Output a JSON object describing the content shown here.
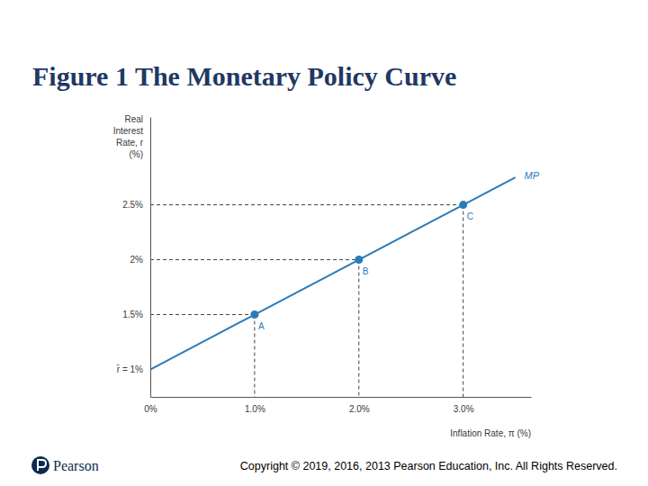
{
  "chart_data": {
    "type": "line",
    "title": "Figure 1 The Monetary Policy Curve",
    "x_label": "Inflation Rate, π (%)",
    "y_label": "Real Interest Rate, r (%)",
    "x": [
      0,
      1,
      2,
      3,
      3.5
    ],
    "series": [
      {
        "name": "MP",
        "color": "#2b7bb9",
        "marker": "none",
        "line_style": "solid",
        "values": [
          1,
          1.5,
          2,
          2.5,
          2.75
        ]
      }
    ],
    "annotations": [
      {
        "x": 1,
        "y": 1.5,
        "label": "A"
      },
      {
        "x": 2,
        "y": 2,
        "label": "B"
      },
      {
        "x": 3,
        "y": 2.5,
        "label": "C"
      }
    ],
    "xlim": [
      0,
      3.65
    ],
    "ylim": [
      0.75,
      3.3
    ],
    "xticks": [
      {
        "value": 0,
        "label": "0%"
      },
      {
        "value": 1,
        "label": "1.0%"
      },
      {
        "value": 2,
        "label": "2.0%"
      },
      {
        "value": 3,
        "label": "3.0%"
      }
    ],
    "yticks": [
      {
        "value": 1,
        "label": "r̄ = 1%"
      },
      {
        "value": 1.5,
        "label": "1.5%"
      },
      {
        "value": 2,
        "label": "2%"
      },
      {
        "value": 2.5,
        "label": "2.5%"
      }
    ]
  },
  "footer": {
    "logo": "Pearson",
    "copyright": "Copyright © 2019, 2016, 2013 Pearson Education, Inc. All Rights Reserved."
  }
}
